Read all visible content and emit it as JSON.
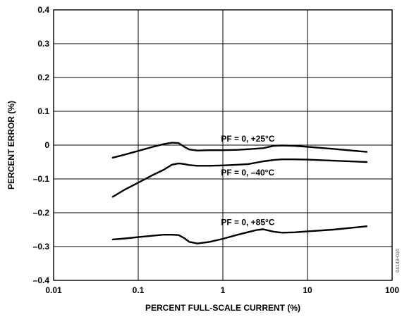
{
  "chart_data": {
    "type": "line",
    "xscale": "log",
    "xlim": [
      0.01,
      100
    ],
    "ylim": [
      -0.4,
      0.4
    ],
    "grid": true,
    "xlabel": "PERCENT FULL-SCALE CURRENT (%)",
    "ylabel": "PERCENT ERROR (%)",
    "xticks": [
      0.01,
      0.1,
      1,
      10,
      100
    ],
    "xtick_labels": [
      "0.01",
      "0.1",
      "1",
      "10",
      "100"
    ],
    "yticks": [
      0.4,
      0.3,
      0.2,
      0.1,
      0,
      -0.1,
      -0.2,
      -0.3,
      -0.4
    ],
    "ytick_labels": [
      "0.4",
      "0.3",
      "0.2",
      "0.1",
      "0",
      "–0.1",
      "–0.2",
      "–0.3",
      "–0.4"
    ],
    "series": [
      {
        "name": "PF = 0, +25°C",
        "x": [
          0.05,
          0.07,
          0.1,
          0.15,
          0.2,
          0.25,
          0.3,
          0.35,
          0.4,
          0.5,
          0.7,
          1,
          1.5,
          2,
          3,
          4,
          5,
          7,
          10,
          20,
          50
        ],
        "y": [
          -0.037,
          -0.028,
          -0.017,
          -0.005,
          0.003,
          0.007,
          0.006,
          -0.005,
          -0.013,
          -0.016,
          -0.015,
          -0.015,
          -0.014,
          -0.012,
          -0.009,
          -0.002,
          -0.001,
          -0.002,
          -0.005,
          -0.011,
          -0.02
        ]
      },
      {
        "name": "PF = 0, –40°C",
        "x": [
          0.05,
          0.07,
          0.1,
          0.15,
          0.2,
          0.25,
          0.3,
          0.35,
          0.4,
          0.5,
          0.7,
          1,
          1.5,
          2,
          3,
          4,
          5,
          7,
          10,
          20,
          50
        ],
        "y": [
          -0.153,
          -0.131,
          -0.111,
          -0.088,
          -0.073,
          -0.058,
          -0.054,
          -0.056,
          -0.059,
          -0.061,
          -0.061,
          -0.06,
          -0.058,
          -0.056,
          -0.048,
          -0.044,
          -0.042,
          -0.042,
          -0.043,
          -0.046,
          -0.05
        ]
      },
      {
        "name": "PF = 0, +85°C",
        "x": [
          0.05,
          0.07,
          0.1,
          0.15,
          0.2,
          0.25,
          0.3,
          0.35,
          0.4,
          0.5,
          0.7,
          1,
          1.5,
          2,
          2.5,
          3,
          4,
          5,
          7,
          10,
          20,
          50
        ],
        "y": [
          -0.279,
          -0.276,
          -0.272,
          -0.268,
          -0.265,
          -0.265,
          -0.266,
          -0.275,
          -0.286,
          -0.291,
          -0.286,
          -0.277,
          -0.265,
          -0.257,
          -0.251,
          -0.249,
          -0.256,
          -0.259,
          -0.258,
          -0.255,
          -0.25,
          -0.24
        ]
      }
    ],
    "annotations": [
      {
        "text": "PF = 0, +25°C",
        "x": 0.95,
        "y": 0.019
      },
      {
        "text": "PF = 0, –40°C",
        "x": 0.95,
        "y": -0.081
      },
      {
        "text": "PF = 0, +85°C",
        "x": 0.95,
        "y": -0.228
      }
    ],
    "side_label": "04143-016"
  }
}
